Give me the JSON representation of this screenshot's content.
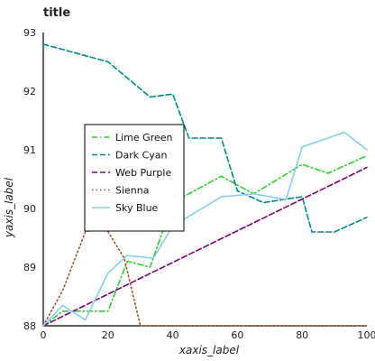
{
  "chart_data": {
    "type": "line",
    "title": "title",
    "xlabel": "xaxis_label",
    "ylabel": "yaxis_label",
    "xlim": [
      0,
      100
    ],
    "ylim": [
      88,
      93
    ],
    "x_ticks": [
      0,
      20,
      40,
      60,
      80,
      100
    ],
    "y_ticks": [
      88,
      89,
      90,
      91,
      92,
      93
    ],
    "grid": false,
    "legend_position": "center",
    "series": [
      {
        "name": "Lime Green",
        "color": "#32cd32",
        "dash": "dash-dot",
        "points": [
          [
            0,
            88.0
          ],
          [
            6,
            88.25
          ],
          [
            20,
            88.25
          ],
          [
            26,
            89.1
          ],
          [
            33,
            89.0
          ],
          [
            40,
            90.1
          ],
          [
            55,
            90.55
          ],
          [
            65,
            90.25
          ],
          [
            80,
            90.75
          ],
          [
            88,
            90.6
          ],
          [
            100,
            90.9
          ]
        ]
      },
      {
        "name": "Dark Cyan",
        "color": "#008b8b",
        "dash": "dashed",
        "points": [
          [
            0,
            92.8
          ],
          [
            20,
            92.5
          ],
          [
            33,
            91.9
          ],
          [
            40,
            91.95
          ],
          [
            45,
            91.2
          ],
          [
            55,
            91.2
          ],
          [
            60,
            90.3
          ],
          [
            68,
            90.1
          ],
          [
            80,
            90.2
          ],
          [
            83,
            89.6
          ],
          [
            90,
            89.6
          ],
          [
            100,
            89.85
          ]
        ]
      },
      {
        "name": "Web Purple",
        "color": "#800080",
        "dash": "dashed",
        "points": [
          [
            0,
            88.0
          ],
          [
            100,
            90.7
          ]
        ]
      },
      {
        "name": "Sienna",
        "color": "#a0522d",
        "dash": "dotted",
        "points": [
          [
            0,
            88.0
          ],
          [
            6,
            88.6
          ],
          [
            13,
            89.6
          ],
          [
            19,
            89.7
          ],
          [
            25,
            89.15
          ],
          [
            30,
            88.0
          ],
          [
            100,
            88.0
          ]
        ]
      },
      {
        "name": "Sky Blue",
        "color": "#87ceeb",
        "dash": "solid",
        "points": [
          [
            0,
            88.0
          ],
          [
            6,
            88.35
          ],
          [
            13,
            88.1
          ],
          [
            20,
            88.9
          ],
          [
            26,
            89.2
          ],
          [
            34,
            89.15
          ],
          [
            40,
            89.7
          ],
          [
            55,
            90.2
          ],
          [
            65,
            90.25
          ],
          [
            75,
            90.15
          ],
          [
            80,
            91.05
          ],
          [
            88,
            91.2
          ],
          [
            93,
            91.3
          ],
          [
            100,
            91.0
          ]
        ]
      }
    ]
  }
}
